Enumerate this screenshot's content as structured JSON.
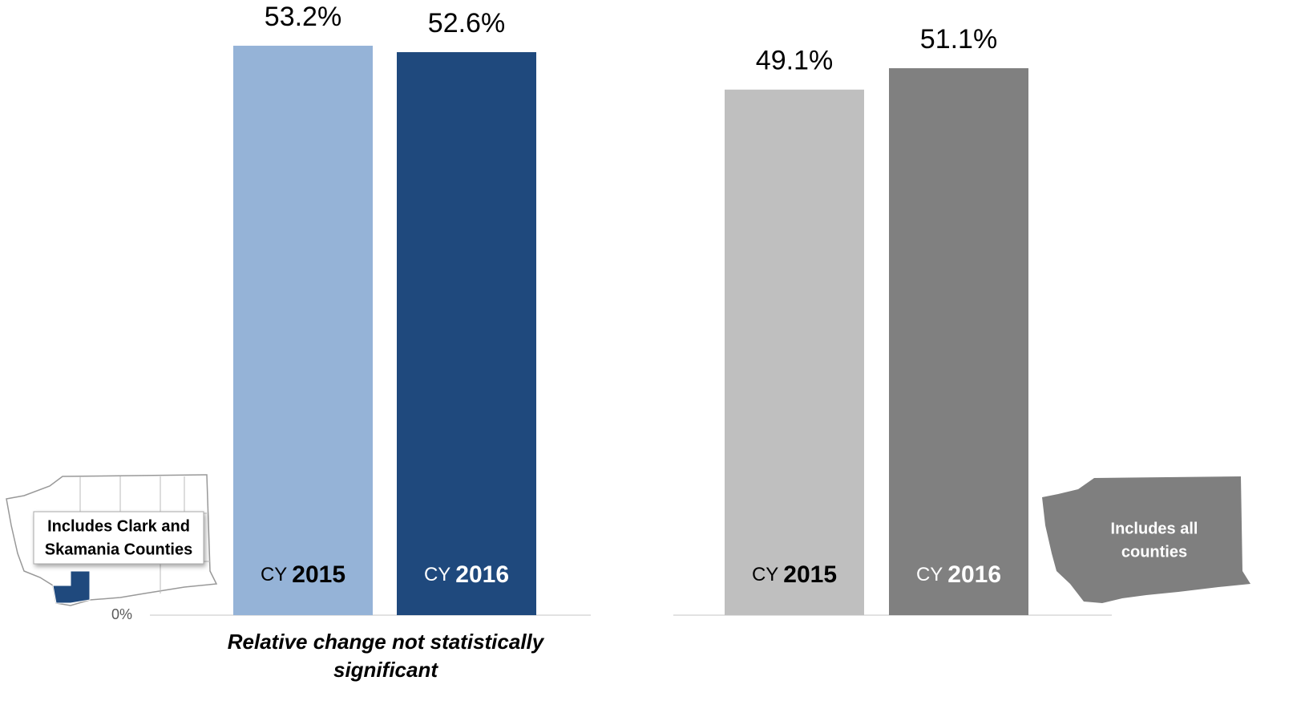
{
  "chart_data": [
    {
      "type": "bar",
      "category_prefix": "CY",
      "categories": [
        "2015",
        "2016"
      ],
      "values": [
        53.2,
        52.6
      ],
      "value_labels": [
        "53.2%",
        "52.6%"
      ],
      "colors": [
        "#95b3d7",
        "#1f497d"
      ],
      "label_colors": [
        "#000000",
        "#ffffff"
      ],
      "ylim": [
        0,
        55
      ],
      "yticks": [
        {
          "value": 0,
          "label": "0%"
        }
      ],
      "annotation": [
        "Includes Clark and",
        "Skamania Counties"
      ],
      "note": [
        "Relative change not statistically",
        "significant"
      ]
    },
    {
      "type": "bar",
      "category_prefix": "CY",
      "categories": [
        "2015",
        "2016"
      ],
      "values": [
        49.1,
        51.1
      ],
      "value_labels": [
        "49.1%",
        "51.1%"
      ],
      "colors": [
        "#bfbfbf",
        "#808080"
      ],
      "label_colors": [
        "#000000",
        "#ffffff"
      ],
      "ylim": [
        0,
        55
      ],
      "annotation": [
        "Includes all",
        "counties"
      ]
    }
  ]
}
